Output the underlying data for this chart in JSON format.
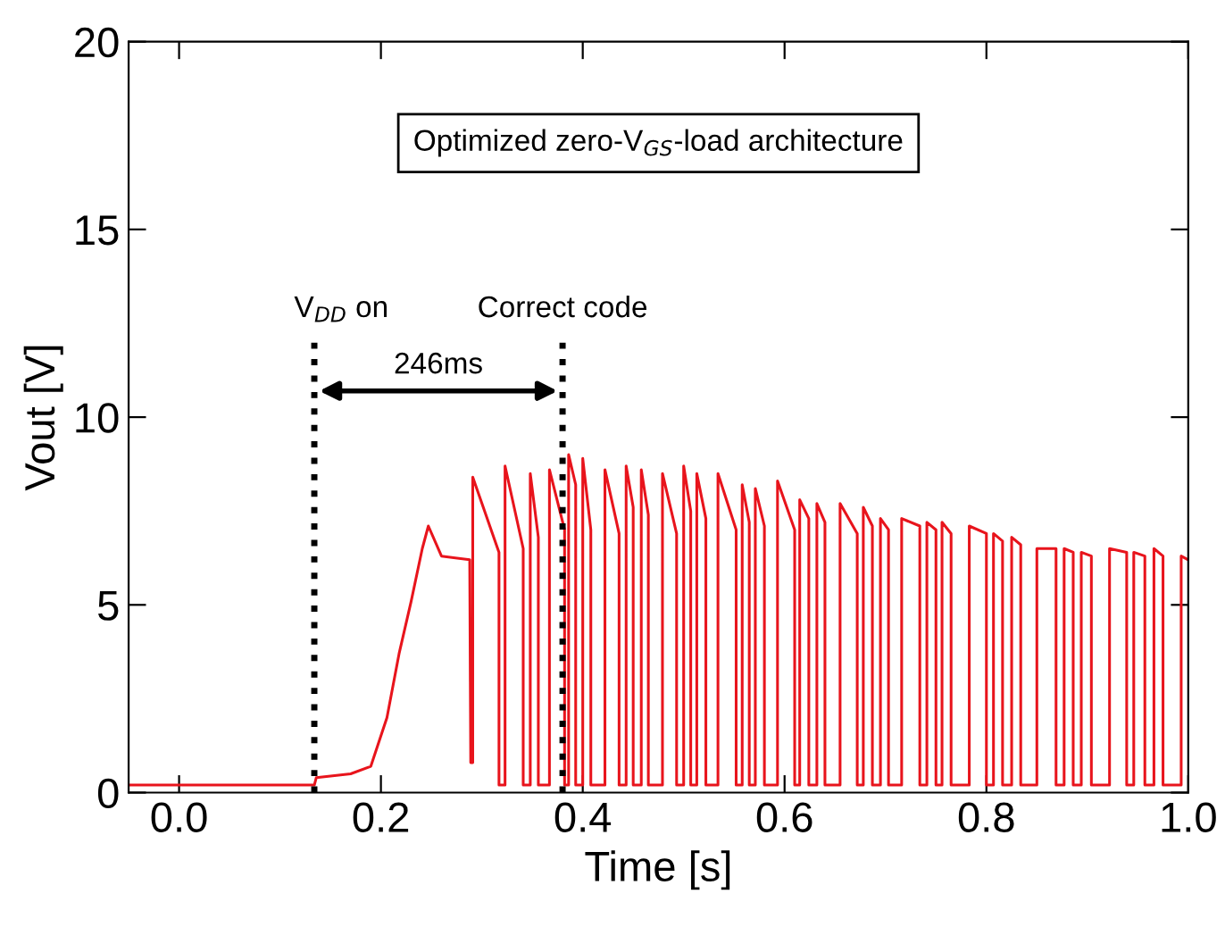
{
  "chart_data": {
    "type": "line",
    "xlabel": "Time [s]",
    "ylabel": "Vout [V]",
    "xlim": [
      -0.05,
      1.0
    ],
    "ylim": [
      0,
      20
    ],
    "xticks": [
      {
        "value": 0,
        "label": "0.0"
      },
      {
        "value": 0.2,
        "label": "0.2"
      },
      {
        "value": 0.4,
        "label": "0.4"
      },
      {
        "value": 0.6,
        "label": "0.6"
      },
      {
        "value": 0.8,
        "label": "0.8"
      },
      {
        "value": 1.0,
        "label": "1.0"
      }
    ],
    "yticks": [
      0,
      5,
      10,
      15,
      20
    ],
    "grid": false,
    "legend": false,
    "marker": "none",
    "line_style": "solid",
    "series": [
      {
        "color": "#e8141c",
        "x": [
          -0.05,
          0.0,
          0.05,
          0.1,
          0.134,
          0.136,
          0.17,
          0.19,
          0.206,
          0.218,
          0.23,
          0.241,
          0.247,
          0.26,
          0.288,
          0.289,
          0.291,
          0.291,
          0.317,
          0.317,
          0.323,
          0.323,
          0.341,
          0.341,
          0.348,
          0.348,
          0.356,
          0.356,
          0.367,
          0.367,
          0.382,
          0.382,
          0.386,
          0.386,
          0.393,
          0.393,
          0.4,
          0.4,
          0.408,
          0.408,
          0.422,
          0.422,
          0.436,
          0.436,
          0.443,
          0.443,
          0.45,
          0.45,
          0.458,
          0.458,
          0.465,
          0.465,
          0.479,
          0.479,
          0.493,
          0.493,
          0.5,
          0.5,
          0.507,
          0.507,
          0.513,
          0.513,
          0.522,
          0.522,
          0.534,
          0.534,
          0.552,
          0.552,
          0.558,
          0.558,
          0.565,
          0.565,
          0.571,
          0.571,
          0.58,
          0.58,
          0.593,
          0.593,
          0.61,
          0.61,
          0.615,
          0.615,
          0.624,
          0.624,
          0.632,
          0.632,
          0.64,
          0.64,
          0.655,
          0.655,
          0.672,
          0.672,
          0.678,
          0.678,
          0.687,
          0.687,
          0.695,
          0.695,
          0.703,
          0.703,
          0.716,
          0.716,
          0.734,
          0.734,
          0.741,
          0.741,
          0.75,
          0.75,
          0.756,
          0.756,
          0.765,
          0.765,
          0.783,
          0.783,
          0.8,
          0.8,
          0.807,
          0.807,
          0.816,
          0.816,
          0.825,
          0.825,
          0.834,
          0.834,
          0.85,
          0.85,
          0.869,
          0.869,
          0.877,
          0.877,
          0.886,
          0.886,
          0.894,
          0.894,
          0.904,
          0.904,
          0.922,
          0.922,
          0.939,
          0.939,
          0.946,
          0.946,
          0.957,
          0.957,
          0.966,
          0.966,
          0.975,
          0.975,
          0.993,
          0.993,
          1.0
        ],
        "values": [
          0.2,
          0.2,
          0.2,
          0.2,
          0.2,
          0.4,
          0.5,
          0.7,
          2.0,
          3.7,
          5.1,
          6.5,
          7.1,
          6.3,
          6.2,
          0.8,
          0.8,
          8.4,
          6.4,
          0.2,
          0.2,
          8.7,
          6.5,
          0.2,
          0.2,
          8.5,
          6.8,
          0.2,
          0.2,
          8.6,
          7.0,
          0.2,
          0.2,
          9.0,
          8.2,
          0.2,
          0.2,
          8.9,
          7.0,
          0.2,
          0.2,
          8.6,
          6.9,
          0.2,
          0.2,
          8.7,
          7.6,
          0.2,
          0.2,
          8.6,
          7.4,
          0.2,
          0.2,
          8.5,
          6.9,
          0.2,
          0.2,
          8.7,
          7.5,
          0.2,
          0.2,
          8.5,
          7.3,
          0.2,
          0.2,
          8.5,
          7.0,
          0.2,
          0.2,
          8.2,
          7.2,
          0.2,
          0.2,
          8.1,
          7.1,
          0.2,
          0.2,
          8.3,
          7.0,
          0.2,
          0.2,
          7.8,
          7.3,
          0.2,
          0.2,
          7.7,
          7.2,
          0.2,
          0.2,
          7.7,
          6.9,
          0.2,
          0.2,
          7.6,
          7.1,
          0.2,
          0.2,
          7.3,
          7.0,
          0.2,
          0.2,
          7.3,
          7.1,
          0.2,
          0.2,
          7.2,
          7.0,
          0.2,
          0.2,
          7.2,
          6.9,
          0.2,
          0.2,
          7.1,
          6.9,
          0.2,
          0.2,
          6.9,
          6.7,
          0.2,
          0.2,
          6.8,
          6.6,
          0.2,
          0.2,
          6.5,
          6.5,
          0.2,
          0.2,
          6.5,
          6.4,
          0.2,
          0.2,
          6.4,
          6.3,
          0.2,
          0.2,
          6.5,
          6.4,
          0.2,
          0.2,
          6.4,
          6.3,
          0.2,
          0.2,
          6.5,
          6.3,
          0.2,
          0.2,
          6.3,
          6.2
        ]
      }
    ],
    "ref_lines": [
      {
        "axis": "x",
        "value": 0.134,
        "label": "V$_{DD}$ on",
        "color": "#000000",
        "line_style": "dotted"
      },
      {
        "axis": "x",
        "value": 0.38,
        "label": "Correct code",
        "color": "#000000",
        "line_style": "dotted"
      }
    ],
    "annotations": [
      "Optimized zero-V$_{GS}$-load architecture",
      "246ms"
    ]
  }
}
